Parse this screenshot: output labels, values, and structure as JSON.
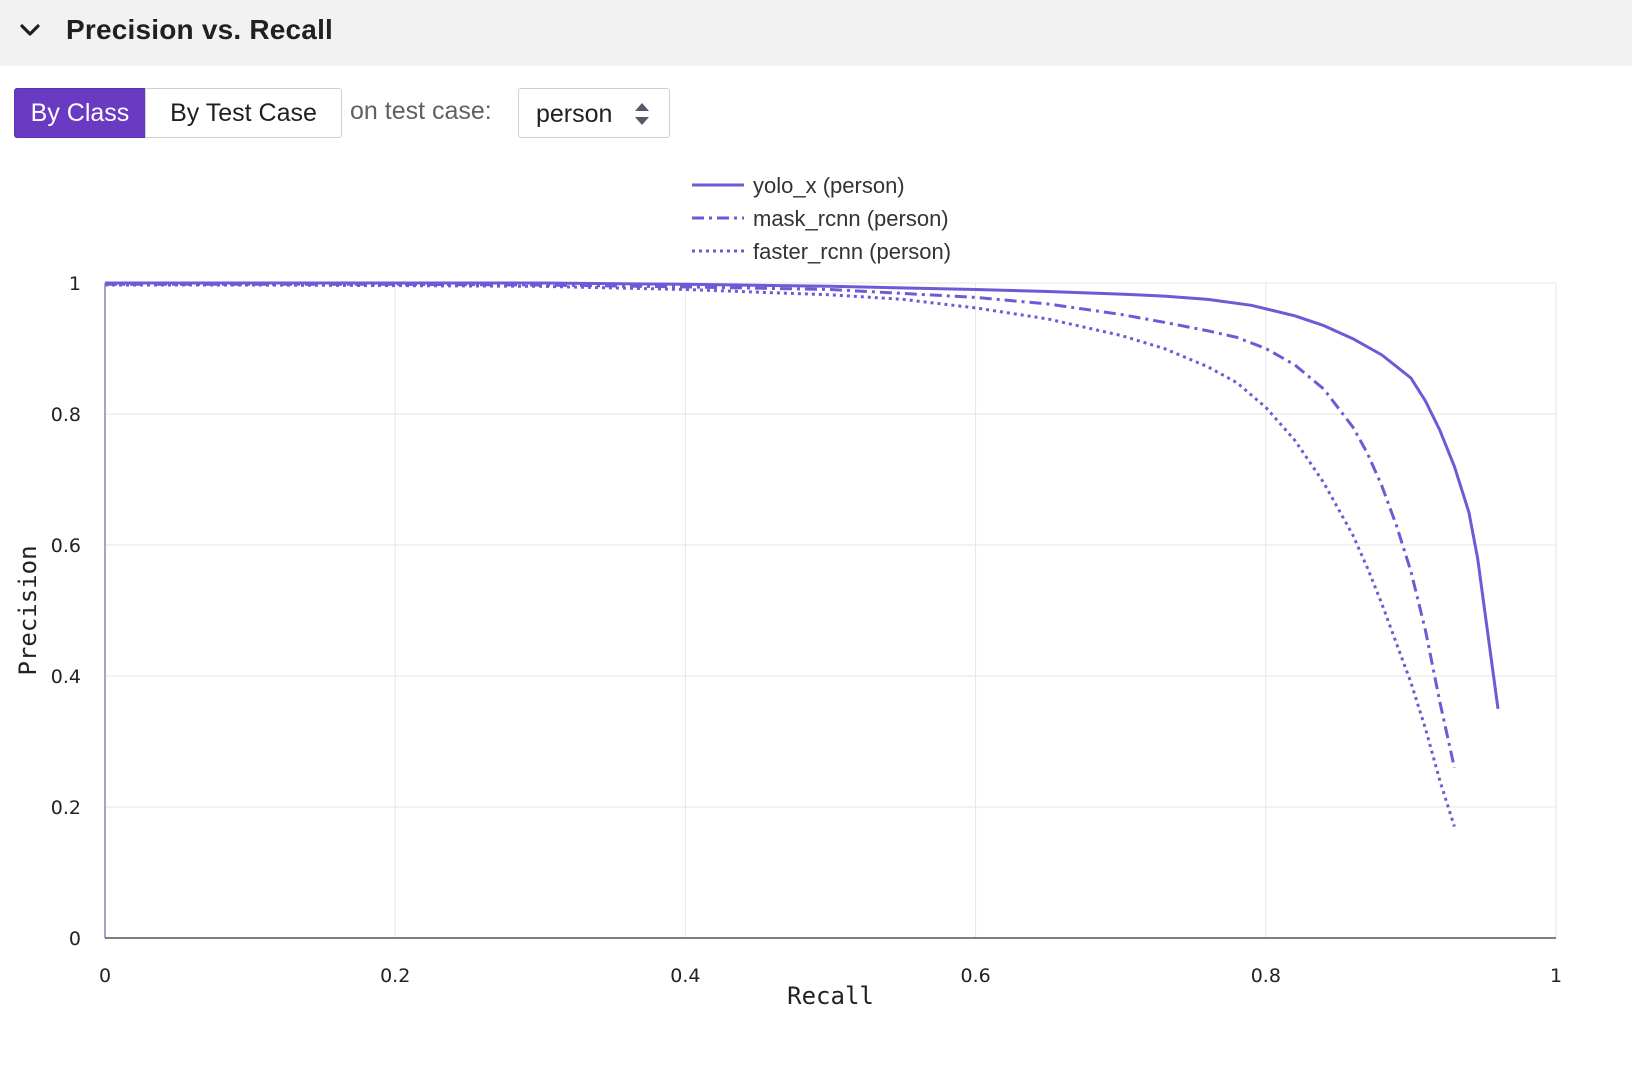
{
  "header": {
    "title": "Precision vs. Recall"
  },
  "toolbar": {
    "by_class_label": "By Class",
    "by_test_case_label": "By Test Case",
    "on_test_case_label": "on test case:",
    "selected_test_case": "person"
  },
  "colors": {
    "accent": "#6a3bc2",
    "series": "#6d5ad6",
    "grid": "#e6e6e6"
  },
  "chart_data": {
    "type": "line",
    "xlabel": "Recall",
    "ylabel": "Precision",
    "xlim": [
      0,
      1
    ],
    "ylim": [
      0,
      1
    ],
    "xticks": [
      "0",
      "0.2",
      "0.4",
      "0.6",
      "0.8",
      "1"
    ],
    "yticks": [
      "0",
      "0.2",
      "0.4",
      "0.6",
      "0.8",
      "1"
    ],
    "grid": true,
    "legend_position": "top-center",
    "series": [
      {
        "name": "yolo_x (person)",
        "style": "solid",
        "x": [
          0,
          0.1,
          0.2,
          0.3,
          0.4,
          0.5,
          0.6,
          0.65,
          0.7,
          0.73,
          0.76,
          0.79,
          0.82,
          0.84,
          0.86,
          0.88,
          0.9,
          0.91,
          0.92,
          0.93,
          0.94,
          0.946,
          0.96
        ],
        "y": [
          1,
          1,
          1,
          1,
          0.998,
          0.995,
          0.99,
          0.987,
          0.983,
          0.98,
          0.975,
          0.966,
          0.95,
          0.935,
          0.915,
          0.89,
          0.855,
          0.82,
          0.775,
          0.72,
          0.65,
          0.58,
          0.35
        ]
      },
      {
        "name": "mask_rcnn (person)",
        "style": "dashdot",
        "x": [
          0,
          0.1,
          0.2,
          0.3,
          0.4,
          0.5,
          0.6,
          0.65,
          0.7,
          0.73,
          0.76,
          0.78,
          0.8,
          0.82,
          0.84,
          0.86,
          0.87,
          0.88,
          0.89,
          0.9,
          0.91,
          0.92,
          0.93
        ],
        "y": [
          0.998,
          0.998,
          0.998,
          0.997,
          0.994,
          0.99,
          0.978,
          0.968,
          0.952,
          0.94,
          0.927,
          0.917,
          0.9,
          0.875,
          0.838,
          0.78,
          0.74,
          0.69,
          0.63,
          0.56,
          0.47,
          0.36,
          0.26
        ]
      },
      {
        "name": "faster_rcnn (person)",
        "style": "dotted",
        "x": [
          0,
          0.1,
          0.2,
          0.3,
          0.4,
          0.5,
          0.55,
          0.6,
          0.65,
          0.7,
          0.73,
          0.76,
          0.78,
          0.8,
          0.82,
          0.84,
          0.86,
          0.87,
          0.88,
          0.89,
          0.9,
          0.91,
          0.92,
          0.93
        ],
        "y": [
          0.997,
          0.997,
          0.996,
          0.995,
          0.99,
          0.982,
          0.975,
          0.962,
          0.945,
          0.92,
          0.9,
          0.872,
          0.848,
          0.81,
          0.76,
          0.695,
          0.615,
          0.565,
          0.51,
          0.45,
          0.39,
          0.32,
          0.24,
          0.17
        ]
      }
    ]
  }
}
